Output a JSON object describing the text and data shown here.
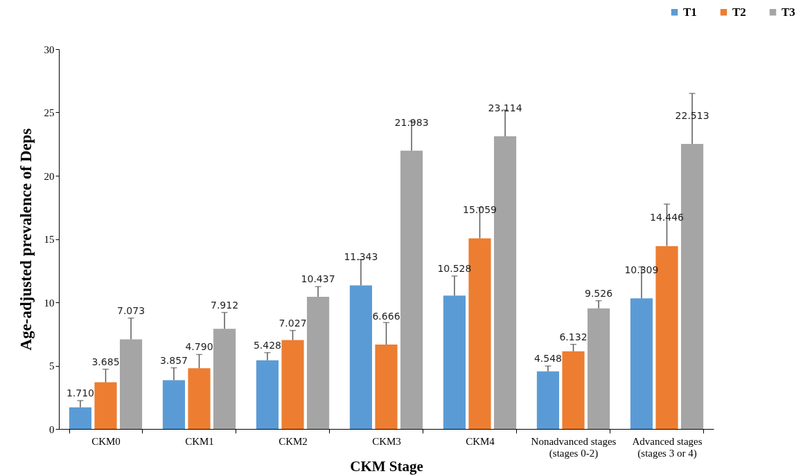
{
  "chart_data": {
    "type": "bar",
    "xlabel": "CKM Stage",
    "ylabel": "Age-adjusted prevalence of Deps",
    "categories": [
      "CKM0",
      "CKM1",
      "CKM2",
      "CKM3",
      "CKM4",
      "Nonadvanced stages\n(stages 0-2)",
      "Advanced stages\n(stages 3 or 4)"
    ],
    "series": [
      {
        "name": "T1",
        "color": "#5b9bd5",
        "values": [
          1.71,
          3.857,
          5.428,
          11.343,
          10.528,
          4.548,
          10.309
        ],
        "value_labels": [
          "1.710",
          "3.857",
          "5.428",
          "11.343",
          "10.528",
          "4.548",
          "10.309"
        ],
        "errors": [
          [
            1.71,
            2.24
          ],
          [
            3.857,
            4.83
          ],
          [
            5.428,
            6.03
          ],
          [
            11.343,
            13.37
          ],
          [
            10.528,
            12.08
          ],
          [
            4.548,
            4.97
          ],
          [
            10.309,
            12.8
          ]
        ]
      },
      {
        "name": "T2",
        "color": "#ed7d31",
        "values": [
          3.685,
          4.79,
          7.027,
          6.666,
          15.059,
          6.132,
          14.446
        ],
        "value_labels": [
          "3.685",
          "4.790",
          "7.027",
          "6.666",
          "15.059",
          "6.132",
          "14.446"
        ],
        "errors": [
          [
            3.685,
            4.72
          ],
          [
            4.79,
            5.88
          ],
          [
            7.027,
            7.78
          ],
          [
            6.666,
            8.4
          ],
          [
            15.059,
            17.49
          ],
          [
            6.132,
            6.68
          ],
          [
            14.446,
            17.76
          ]
        ]
      },
      {
        "name": "T3",
        "color": "#a5a5a5",
        "values": [
          7.073,
          7.912,
          10.437,
          21.983,
          23.114,
          9.526,
          22.513
        ],
        "value_labels": [
          "7.073",
          "7.912",
          "10.437",
          "21.983",
          "23.114",
          "9.526",
          "22.513"
        ],
        "errors": [
          [
            7.073,
            8.76
          ],
          [
            7.912,
            9.2
          ],
          [
            10.437,
            11.24
          ],
          [
            21.983,
            24.3
          ],
          [
            23.114,
            25.19
          ],
          [
            9.526,
            10.13
          ],
          [
            22.513,
            26.5
          ]
        ]
      }
    ],
    "ylim": [
      0,
      30
    ],
    "yticks": [
      0,
      5,
      10,
      15,
      20,
      25,
      30
    ],
    "grid": false,
    "legend": "top right"
  }
}
